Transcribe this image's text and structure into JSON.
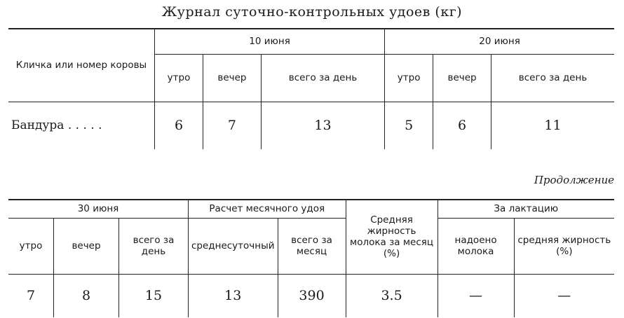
{
  "title": "Журнал суточно-контрольных удоев (кг)",
  "table1": {
    "col_label": "Кличка или номер коровы",
    "groups": [
      "10 июня",
      "20 июня"
    ],
    "subheads": [
      "утро",
      "вечер",
      "всего за день"
    ],
    "row_name": "Бандура . . . . .",
    "values": [
      "6",
      "7",
      "13",
      "5",
      "6",
      "11"
    ]
  },
  "continuation": "Продолжение",
  "table2": {
    "group1": "30 июня",
    "group2": "Расчет месячного удоя",
    "fat_head": "Средняя жирность молока за месяц (%)",
    "group3": "За лактацию",
    "subheads1": [
      "утро",
      "вечер",
      "всего за день"
    ],
    "subheads2": [
      "среднесуточный",
      "всего за месяц"
    ],
    "subheads3": [
      "надоено молока",
      "средняя жирность (%)"
    ],
    "values": [
      "7",
      "8",
      "15",
      "13",
      "390",
      "3.5",
      "—",
      "—"
    ]
  }
}
